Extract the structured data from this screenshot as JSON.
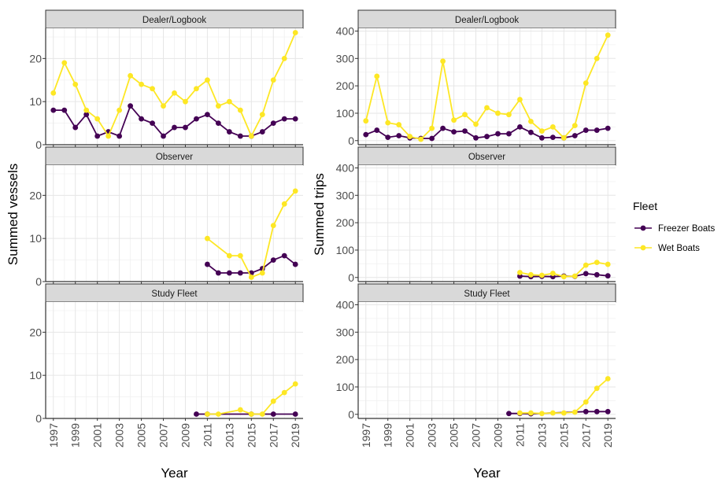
{
  "chart_data": [
    {
      "type": "line",
      "title": "",
      "ylabel": "Summed vessels",
      "xlabel": "Year",
      "x_ticks": [
        "1997",
        "1999",
        "2001",
        "2003",
        "2005",
        "2007",
        "2009",
        "2011",
        "2013",
        "2015",
        "2017",
        "2019"
      ],
      "xlim": [
        1996.3,
        2019.7
      ],
      "ylim": [
        0,
        27
      ],
      "y_ticks": [
        0,
        10,
        20
      ],
      "grid": true,
      "panels": [
        {
          "label": "Dealer/Logbook",
          "series": [
            {
              "name": "Freezer Boats",
              "x": [
                1997,
                1998,
                1999,
                2000,
                2001,
                2002,
                2003,
                2004,
                2005,
                2006,
                2007,
                2008,
                2009,
                2010,
                2011,
                2012,
                2013,
                2014,
                2015,
                2016,
                2017,
                2018,
                2019
              ],
              "y": [
                8,
                8,
                4,
                7,
                2,
                3,
                2,
                9,
                6,
                5,
                2,
                4,
                4,
                6,
                7,
                5,
                3,
                2,
                2,
                3,
                5,
                6,
                6
              ]
            },
            {
              "name": "Wet Boats",
              "x": [
                1997,
                1998,
                1999,
                2000,
                2001,
                2002,
                2003,
                2004,
                2005,
                2006,
                2007,
                2008,
                2009,
                2010,
                2011,
                2012,
                2013,
                2014,
                2015,
                2016,
                2017,
                2018,
                2019
              ],
              "y": [
                12,
                19,
                14,
                8,
                6,
                2,
                8,
                16,
                14,
                13,
                9,
                12,
                10,
                13,
                15,
                9,
                10,
                8,
                2,
                7,
                15,
                20,
                26
              ]
            }
          ]
        },
        {
          "label": "Observer",
          "series": [
            {
              "name": "Freezer Boats",
              "x": [
                2011,
                2012,
                2013,
                2014,
                2015,
                2016,
                2017,
                2018,
                2019
              ],
              "y": [
                4,
                2,
                2,
                2,
                2,
                3,
                5,
                6,
                4
              ]
            },
            {
              "name": "Wet Boats",
              "x": [
                2011,
                2013,
                2014,
                2015,
                2016,
                2017,
                2018,
                2019
              ],
              "y": [
                10,
                6,
                6,
                1,
                2,
                13,
                18,
                21
              ]
            }
          ]
        },
        {
          "label": "Study Fleet",
          "series": [
            {
              "name": "Freezer Boats",
              "x": [
                2010,
                2011,
                2015,
                2017,
                2019
              ],
              "y": [
                1,
                1,
                1,
                1,
                1
              ]
            },
            {
              "name": "Wet Boats",
              "x": [
                2011,
                2012,
                2014,
                2015,
                2016,
                2017,
                2018,
                2019
              ],
              "y": [
                1,
                1,
                2,
                1,
                1,
                4,
                6,
                8
              ]
            }
          ]
        }
      ]
    },
    {
      "type": "line",
      "title": "",
      "ylabel": "Summed trips",
      "xlabel": "Year",
      "x_ticks": [
        "1997",
        "1999",
        "2001",
        "2003",
        "2005",
        "2007",
        "2009",
        "2011",
        "2013",
        "2015",
        "2017",
        "2019"
      ],
      "xlim": [
        1996.3,
        2019.7
      ],
      "ylim": [
        -15,
        410
      ],
      "y_ticks": [
        0,
        100,
        200,
        300,
        400
      ],
      "grid": true,
      "panels": [
        {
          "label": "Dealer/Logbook",
          "series": [
            {
              "name": "Freezer Boats",
              "x": [
                1997,
                1998,
                1999,
                2000,
                2001,
                2002,
                2003,
                2004,
                2005,
                2006,
                2007,
                2008,
                2009,
                2010,
                2011,
                2012,
                2013,
                2014,
                2015,
                2016,
                2017,
                2018,
                2019
              ],
              "y": [
                22,
                38,
                12,
                18,
                10,
                8,
                8,
                45,
                32,
                35,
                10,
                15,
                25,
                25,
                50,
                30,
                10,
                12,
                10,
                18,
                38,
                38,
                45
              ]
            },
            {
              "name": "Wet Boats",
              "x": [
                1997,
                1998,
                1999,
                2000,
                2001,
                2002,
                2003,
                2004,
                2005,
                2006,
                2007,
                2008,
                2009,
                2010,
                2011,
                2012,
                2013,
                2014,
                2015,
                2016,
                2017,
                2018,
                2019
              ],
              "y": [
                72,
                235,
                65,
                58,
                15,
                5,
                45,
                290,
                75,
                95,
                60,
                120,
                100,
                95,
                150,
                70,
                35,
                50,
                10,
                55,
                210,
                300,
                385
              ]
            }
          ]
        },
        {
          "label": "Observer",
          "series": [
            {
              "name": "Freezer Boats",
              "x": [
                2011,
                2012,
                2013,
                2014,
                2015,
                2016,
                2017,
                2018,
                2019
              ],
              "y": [
                5,
                3,
                4,
                3,
                5,
                4,
                14,
                10,
                6
              ]
            },
            {
              "name": "Wet Boats",
              "x": [
                2011,
                2012,
                2013,
                2014,
                2015,
                2016,
                2017,
                2018,
                2019
              ],
              "y": [
                18,
                10,
                8,
                15,
                3,
                5,
                45,
                55,
                48
              ]
            }
          ]
        },
        {
          "label": "Study Fleet",
          "series": [
            {
              "name": "Freezer Boats",
              "x": [
                2010,
                2011,
                2012,
                2017,
                2018,
                2019
              ],
              "y": [
                3,
                3,
                2,
                10,
                10,
                10
              ]
            },
            {
              "name": "Wet Boats",
              "x": [
                2011,
                2012,
                2013,
                2014,
                2015,
                2016,
                2017,
                2018,
                2019
              ],
              "y": [
                5,
                5,
                3,
                5,
                5,
                8,
                45,
                95,
                130
              ]
            }
          ]
        }
      ]
    }
  ],
  "legend": {
    "title": "Fleet",
    "items": [
      {
        "label": "Freezer Boats",
        "color": "#440154"
      },
      {
        "label": "Wet Boats",
        "color": "#FDE725"
      }
    ]
  }
}
